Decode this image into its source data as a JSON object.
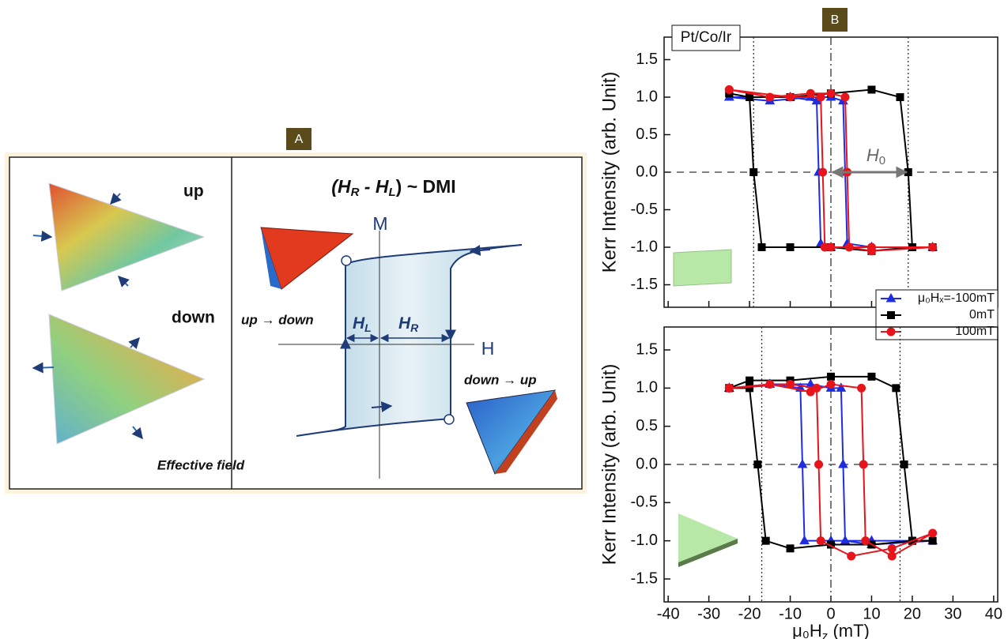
{
  "panel_a": {
    "label": "A",
    "title": [
      "(H",
      "R",
      " - H",
      "L",
      ") ~ DMI"
    ],
    "up": "up",
    "down": "down",
    "effective_field": "Effective field",
    "m_axis": "M",
    "h_axis": "H",
    "hl": [
      "H",
      "L"
    ],
    "hr": [
      "H",
      "R"
    ],
    "up_to_down": "up → down",
    "down_to_up": "down → up"
  },
  "panel_b": {
    "label": "B",
    "sample": "Pt/Co/Ir"
  },
  "chart_data": [
    {
      "type": "line",
      "y_label": "Kerr Intensity (arb. Unit)",
      "xlim": [
        -41,
        41
      ],
      "ylim": [
        -1.8,
        1.8
      ],
      "xticks": [
        -40,
        -30,
        -20,
        -10,
        0,
        10,
        20,
        30,
        40
      ],
      "show_xtick_labels": false,
      "yticks": [
        1.5,
        {
          "value": 1,
          "label": "1.0"
        },
        0.5,
        {
          "value": 0,
          "label": "0.0"
        },
        -0.5,
        {
          "value": -1,
          "label": "-1.0"
        },
        -1.5
      ],
      "hlines": [
        0
      ],
      "vlines": [
        -19,
        19
      ],
      "vlines_dashdot": [
        0
      ],
      "legend": "lower right",
      "annotation": {
        "text": [
          "H",
          "0"
        ],
        "x": [
          0,
          19
        ]
      },
      "series": [
        {
          "name": "μ₀Hₓ=-100mT",
          "color": "#1f2de0",
          "marker": "triangle",
          "x": [
            -25,
            -15,
            -5,
            0,
            3,
            3.5,
            4,
            10,
            25,
            10,
            0,
            -2.5,
            -3,
            -3.5,
            -10,
            -25
          ],
          "values": [
            1.0,
            0.95,
            1.0,
            1.0,
            0.95,
            0,
            -0.95,
            -1.0,
            -1.0,
            -1.0,
            -1.0,
            -0.95,
            0,
            0.95,
            1.0,
            1.0
          ]
        },
        {
          "name": "0mT",
          "color": "#000000",
          "marker": "square",
          "x": [
            -25,
            -20,
            -10,
            0,
            10,
            17,
            19,
            20,
            25,
            20,
            10,
            0,
            -10,
            -17,
            -19,
            -20,
            -25
          ],
          "values": [
            1.05,
            1.0,
            1.0,
            1.05,
            1.1,
            1.0,
            0,
            -1.0,
            -1.0,
            -1.0,
            -1.05,
            -1.0,
            -1.0,
            -1.0,
            0,
            1.0,
            1.05
          ]
        },
        {
          "name": "100mT",
          "color": "#e8141c",
          "marker": "circle",
          "x": [
            -25,
            -15,
            -5,
            0,
            3.5,
            4,
            4.5,
            10,
            25,
            10,
            0,
            -1.5,
            -2,
            -2.5,
            -10,
            -25
          ],
          "values": [
            1.1,
            1.0,
            1.05,
            1.05,
            1.0,
            0,
            -1.0,
            -1.05,
            -1.0,
            -1.0,
            -1.0,
            -1.0,
            0,
            1.0,
            1.0,
            1.1
          ]
        }
      ]
    },
    {
      "type": "line",
      "y_label": "Kerr Intensity (arb. Unit)",
      "x_label": [
        "μ₀H",
        "z",
        " (mT)"
      ],
      "xlim": [
        -41,
        41
      ],
      "ylim": [
        -1.8,
        1.8
      ],
      "xticks": [
        -40,
        -30,
        -20,
        -10,
        0,
        10,
        20,
        30,
        40
      ],
      "show_xtick_labels": true,
      "yticks": [
        1.5,
        {
          "value": 1,
          "label": "1.0"
        },
        0.5,
        {
          "value": 0,
          "label": "0.0"
        },
        -0.5,
        {
          "value": -1,
          "label": "-1.0"
        },
        -1.5
      ],
      "hlines": [
        0
      ],
      "vlines": [
        -17,
        17
      ],
      "vlines_dashdot": [
        0
      ],
      "series": [
        {
          "color": "#1f2de0",
          "marker": "triangle",
          "x": [
            -25,
            -15,
            -5,
            0,
            2.5,
            3,
            3.5,
            10,
            25,
            10,
            0,
            -6.5,
            -7,
            -7.5,
            -15,
            -25
          ],
          "values": [
            1.0,
            1.05,
            1.05,
            1.0,
            1.0,
            0,
            -1.0,
            -1.05,
            -1.0,
            -1.0,
            -1.0,
            -1.0,
            0,
            1.0,
            1.05,
            1.0
          ]
        },
        {
          "color": "#000000",
          "marker": "square",
          "x": [
            -25,
            -20,
            -10,
            0,
            10,
            16,
            18,
            20,
            25,
            20,
            10,
            0,
            -10,
            -16,
            -18,
            -20,
            -25
          ],
          "values": [
            1.0,
            1.1,
            1.1,
            1.15,
            1.15,
            1.0,
            0,
            -1.0,
            -1.0,
            -1.0,
            -1.05,
            -1.05,
            -1.1,
            -1.0,
            0,
            1.0,
            1.0
          ]
        },
        {
          "color": "#e8141c",
          "marker": "circle",
          "x": [
            -25,
            -15,
            -5,
            0,
            7.5,
            8,
            8.5,
            15,
            25,
            15,
            5,
            -2.5,
            -3,
            -3.5,
            -10,
            -25
          ],
          "values": [
            1.0,
            1.05,
            0.95,
            1.05,
            1.0,
            0,
            -1.0,
            -1.2,
            -0.9,
            -1.1,
            -1.2,
            -1.0,
            0,
            1.0,
            1.05,
            1.0
          ]
        }
      ]
    }
  ]
}
